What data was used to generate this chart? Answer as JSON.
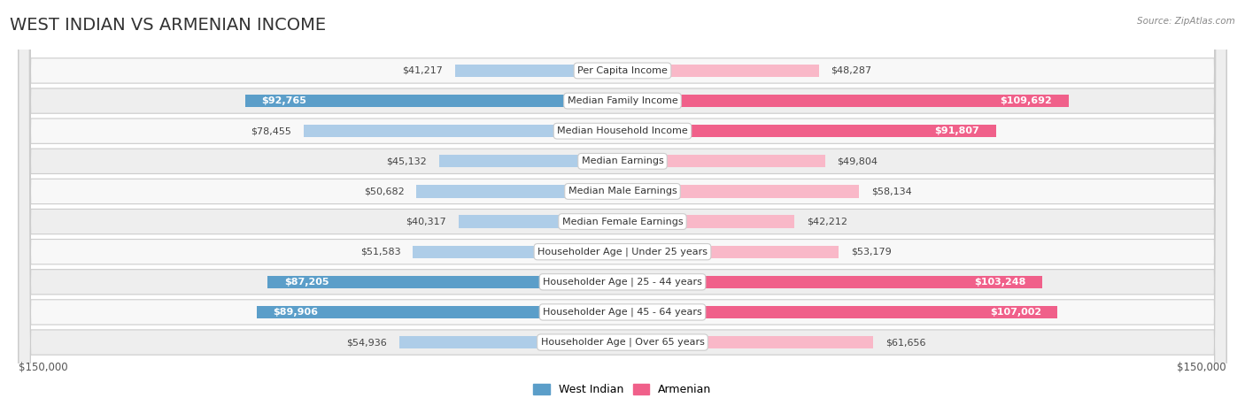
{
  "title": "WEST INDIAN VS ARMENIAN INCOME",
  "source": "Source: ZipAtlas.com",
  "categories": [
    "Per Capita Income",
    "Median Family Income",
    "Median Household Income",
    "Median Earnings",
    "Median Male Earnings",
    "Median Female Earnings",
    "Householder Age | Under 25 years",
    "Householder Age | 25 - 44 years",
    "Householder Age | 45 - 64 years",
    "Householder Age | Over 65 years"
  ],
  "west_indian": [
    41217,
    92765,
    78455,
    45132,
    50682,
    40317,
    51583,
    87205,
    89906,
    54936
  ],
  "armenian": [
    48287,
    109692,
    91807,
    49804,
    58134,
    42212,
    53179,
    103248,
    107002,
    61656
  ],
  "west_indian_color_light": "#aecde8",
  "west_indian_color_dark": "#5b9ec9",
  "armenian_color_light": "#f9b8c8",
  "armenian_color_dark": "#f0608a",
  "max_value": 150000,
  "inside_threshold": 0.55,
  "legend_west_indian": "West Indian",
  "legend_armenian": "Armenian",
  "title_fontsize": 14,
  "label_fontsize": 8,
  "value_fontsize": 8,
  "axis_label_left": "$150,000",
  "axis_label_right": "$150,000",
  "row_colors": [
    "#f8f8f8",
    "#eeeeee"
  ],
  "row_border_color": "#cccccc"
}
